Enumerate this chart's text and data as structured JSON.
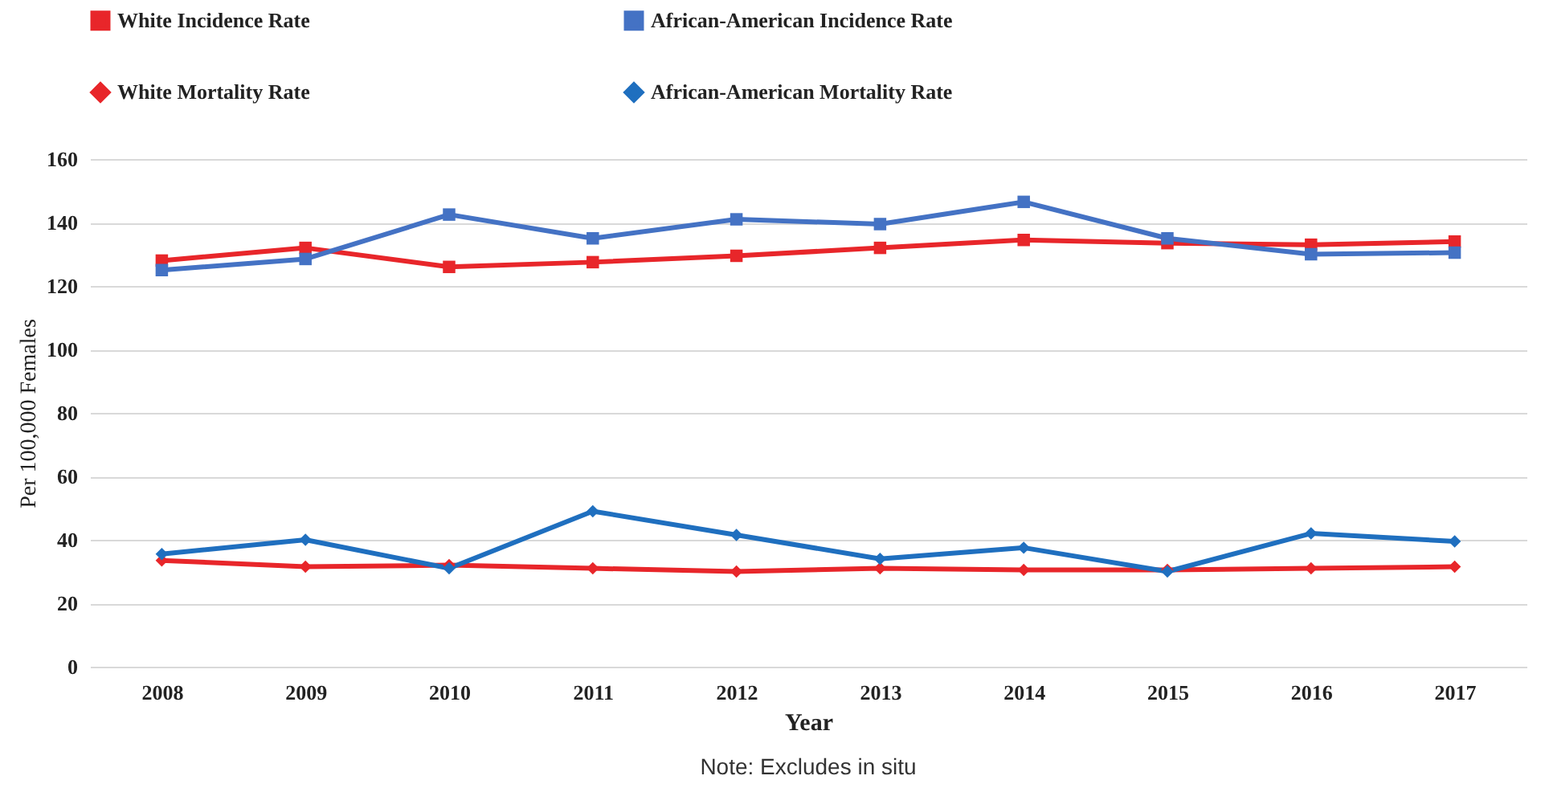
{
  "chart_data": {
    "type": "line",
    "xlabel": "Year",
    "ylabel": "Per 100,000 Females",
    "categories": [
      "2008",
      "2009",
      "2010",
      "2011",
      "2012",
      "2013",
      "2014",
      "2015",
      "2016",
      "2017"
    ],
    "series": [
      {
        "name": "White Incidence Rate",
        "color": "#e8262a",
        "marker": "square",
        "values": [
          128,
          132,
          126,
          127.5,
          129.5,
          132,
          134.5,
          133.5,
          133,
          134
        ]
      },
      {
        "name": "African-American Incidence Rate",
        "color": "#4472c4",
        "marker": "square",
        "values": [
          125,
          128.5,
          142.5,
          135,
          141,
          139.5,
          146.5,
          135,
          130,
          130.5
        ]
      },
      {
        "name": "White Mortality Rate",
        "color": "#e8262a",
        "marker": "diamond",
        "values": [
          33.5,
          31.5,
          32,
          31,
          30,
          31,
          30.5,
          30.5,
          31,
          31.5
        ]
      },
      {
        "name": "African-American Mortality Rate",
        "color": "#1f6fbf",
        "marker": "diamond",
        "values": [
          35.5,
          40,
          31,
          49,
          41.5,
          34,
          37.5,
          30,
          42,
          39.5
        ]
      }
    ],
    "ylim": [
      0,
      160
    ],
    "yticks": [
      0,
      20,
      40,
      60,
      80,
      100,
      120,
      140,
      160
    ],
    "grid": "y",
    "legend": "top",
    "line_style": "solid",
    "annotations": [
      "Note: Excludes in situ"
    ]
  }
}
